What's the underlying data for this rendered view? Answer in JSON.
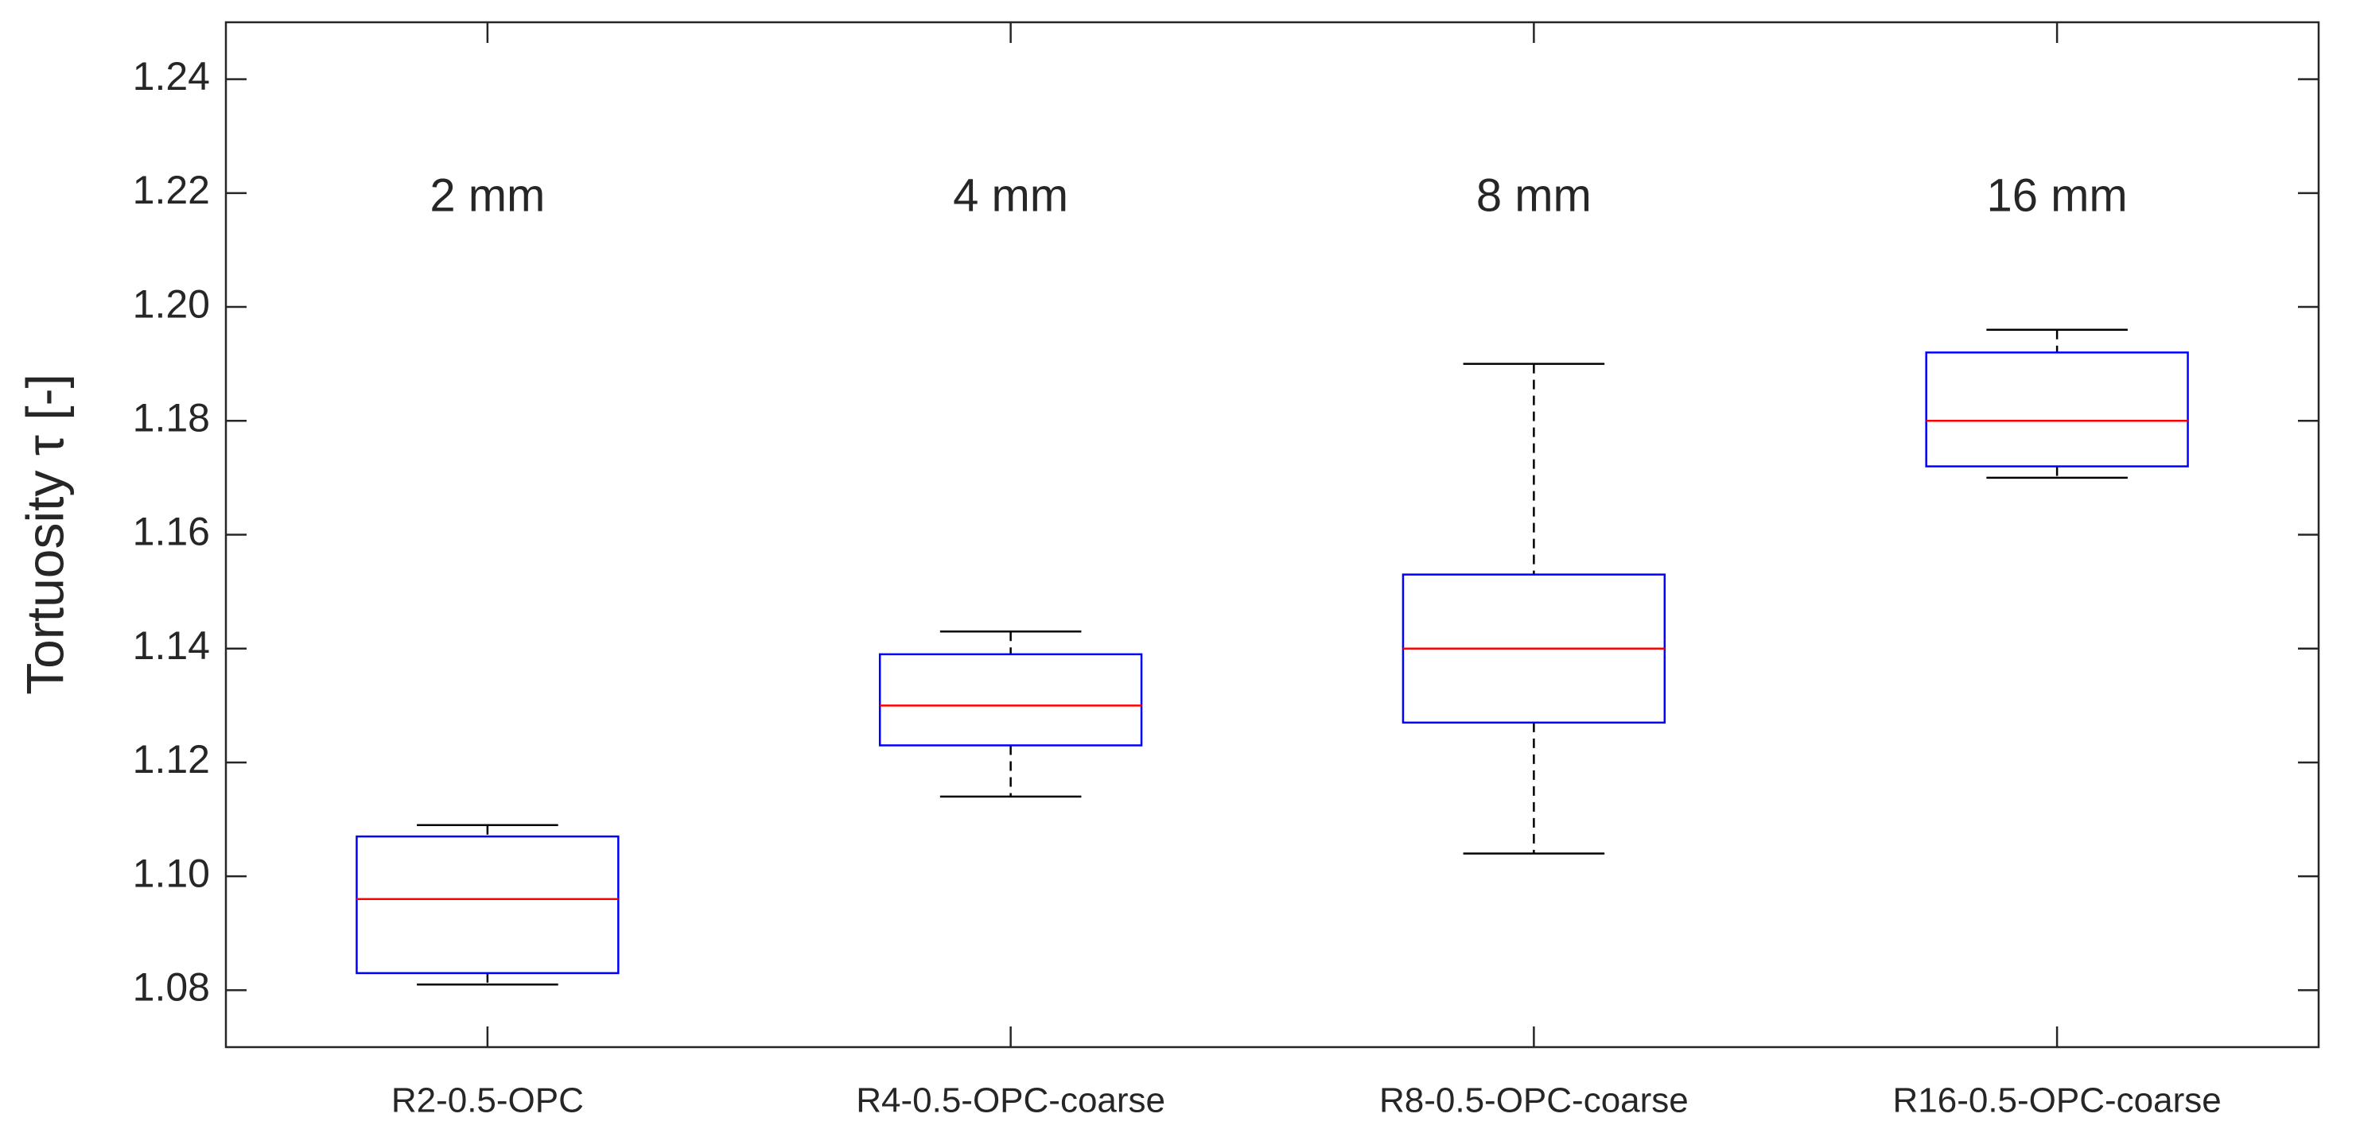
{
  "chart_data": {
    "type": "box",
    "y_label": "Tortuosity τ [-]",
    "categories": [
      "R2-0.5-OPC",
      "R4-0.5-OPC-coarse",
      "R8-0.5-OPC-coarse",
      "R16-0.5-OPC-coarse"
    ],
    "annotations": [
      "2 mm",
      "4 mm",
      "8 mm",
      "16 mm"
    ],
    "boxes": [
      {
        "low": 1.081,
        "q1": 1.083,
        "median": 1.096,
        "q3": 1.107,
        "high": 1.109
      },
      {
        "low": 1.114,
        "q1": 1.123,
        "median": 1.13,
        "q3": 1.139,
        "high": 1.143
      },
      {
        "low": 1.104,
        "q1": 1.127,
        "median": 1.14,
        "q3": 1.153,
        "high": 1.19
      },
      {
        "low": 1.17,
        "q1": 1.172,
        "median": 1.18,
        "q3": 1.192,
        "high": 1.196
      }
    ],
    "box_color": "#0000ff",
    "median_color": "#ff0000",
    "whisker_color": "#000000",
    "ylim": [
      1.07,
      1.25
    ],
    "yticks": [
      1.08,
      {
        "value": 1.1,
        "label": "1.10"
      },
      1.12,
      1.14,
      1.16,
      1.18,
      {
        "value": 1.2,
        "label": "1.20"
      },
      1.22,
      1.24
    ]
  }
}
